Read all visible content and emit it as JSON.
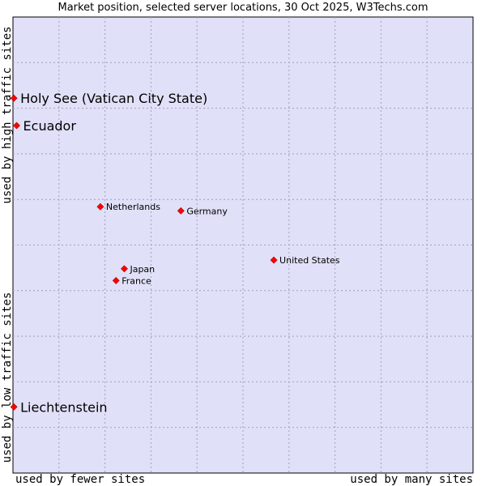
{
  "chart_data": {
    "type": "scatter",
    "title": "Market position, selected server locations, 30 Oct 2025, W3Techs.com",
    "xlabel_left": "used by fewer sites",
    "xlabel_right": "used by many sites",
    "ylabel_top": "used by high traffic sites",
    "ylabel_bottom": "used by low traffic sites",
    "xlim": [
      0,
      100
    ],
    "ylim": [
      0,
      100
    ],
    "grid": true,
    "point_color": "#ff0000",
    "background_color": "#e0e0f8",
    "points": [
      {
        "label": "Holy See (Vatican City State)",
        "x": 0.2,
        "y": 82.2,
        "highlight": true
      },
      {
        "label": "Ecuador",
        "x": 0.8,
        "y": 76.2,
        "highlight": true
      },
      {
        "label": "Netherlands",
        "x": 19.0,
        "y": 58.4,
        "highlight": false
      },
      {
        "label": "Germany",
        "x": 36.5,
        "y": 57.5,
        "highlight": false
      },
      {
        "label": "United States",
        "x": 56.7,
        "y": 46.7,
        "highlight": false
      },
      {
        "label": "Japan",
        "x": 24.2,
        "y": 44.8,
        "highlight": false
      },
      {
        "label": "France",
        "x": 22.4,
        "y": 42.2,
        "highlight": false
      },
      {
        "label": "Liechtenstein",
        "x": 0.2,
        "y": 14.5,
        "highlight": true
      }
    ]
  }
}
